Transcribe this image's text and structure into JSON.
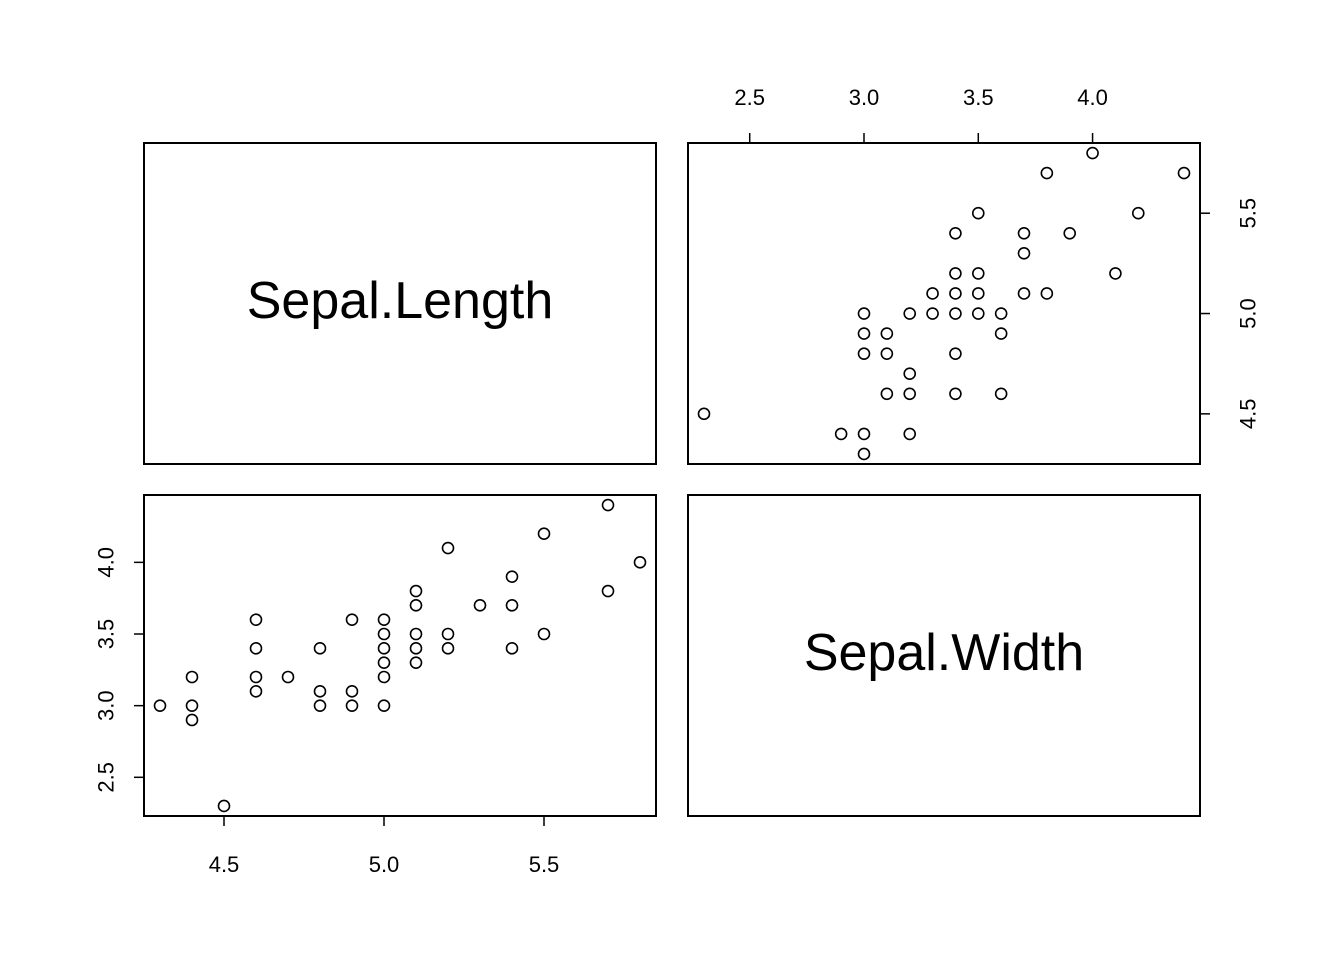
{
  "chart_data": {
    "type": "scatter",
    "kind": "pairs-matrix",
    "variables": [
      "Sepal.Length",
      "Sepal.Width"
    ],
    "x_ticks_sepal_length": [
      "4.5",
      "5.0",
      "5.5"
    ],
    "ticks_sepal_width": [
      "2.5",
      "3.0",
      "3.5",
      "4.0"
    ],
    "y_ticks_sepal_length": [
      "4.5",
      "5.0",
      "5.5"
    ],
    "sepal_length_range": [
      4.25,
      5.85
    ],
    "sepal_width_range": [
      2.23,
      4.47
    ],
    "points": [
      {
        "sl": 4.5,
        "sw": 2.3
      },
      {
        "sl": 4.3,
        "sw": 3.0
      },
      {
        "sl": 4.4,
        "sw": 3.2
      },
      {
        "sl": 4.4,
        "sw": 3.0
      },
      {
        "sl": 4.4,
        "sw": 2.9
      },
      {
        "sl": 4.6,
        "sw": 3.6
      },
      {
        "sl": 4.6,
        "sw": 3.4
      },
      {
        "sl": 4.6,
        "sw": 3.2
      },
      {
        "sl": 4.6,
        "sw": 3.1
      },
      {
        "sl": 4.7,
        "sw": 3.2
      },
      {
        "sl": 4.8,
        "sw": 3.4
      },
      {
        "sl": 4.8,
        "sw": 3.1
      },
      {
        "sl": 4.8,
        "sw": 3.0
      },
      {
        "sl": 4.9,
        "sw": 3.6
      },
      {
        "sl": 4.9,
        "sw": 3.1
      },
      {
        "sl": 4.9,
        "sw": 3.0
      },
      {
        "sl": 5.0,
        "sw": 3.6
      },
      {
        "sl": 5.0,
        "sw": 3.5
      },
      {
        "sl": 5.0,
        "sw": 3.4
      },
      {
        "sl": 5.0,
        "sw": 3.3
      },
      {
        "sl": 5.0,
        "sw": 3.2
      },
      {
        "sl": 5.0,
        "sw": 3.0
      },
      {
        "sl": 5.1,
        "sw": 3.8
      },
      {
        "sl": 5.1,
        "sw": 3.7
      },
      {
        "sl": 5.1,
        "sw": 3.5
      },
      {
        "sl": 5.1,
        "sw": 3.4
      },
      {
        "sl": 5.1,
        "sw": 3.3
      },
      {
        "sl": 5.2,
        "sw": 4.1
      },
      {
        "sl": 5.2,
        "sw": 3.5
      },
      {
        "sl": 5.2,
        "sw": 3.4
      },
      {
        "sl": 5.3,
        "sw": 3.7
      },
      {
        "sl": 5.4,
        "sw": 3.9
      },
      {
        "sl": 5.4,
        "sw": 3.7
      },
      {
        "sl": 5.4,
        "sw": 3.4
      },
      {
        "sl": 5.5,
        "sw": 4.2
      },
      {
        "sl": 5.5,
        "sw": 3.5
      },
      {
        "sl": 5.7,
        "sw": 4.4
      },
      {
        "sl": 5.7,
        "sw": 3.8
      },
      {
        "sl": 5.8,
        "sw": 4.0
      }
    ]
  }
}
